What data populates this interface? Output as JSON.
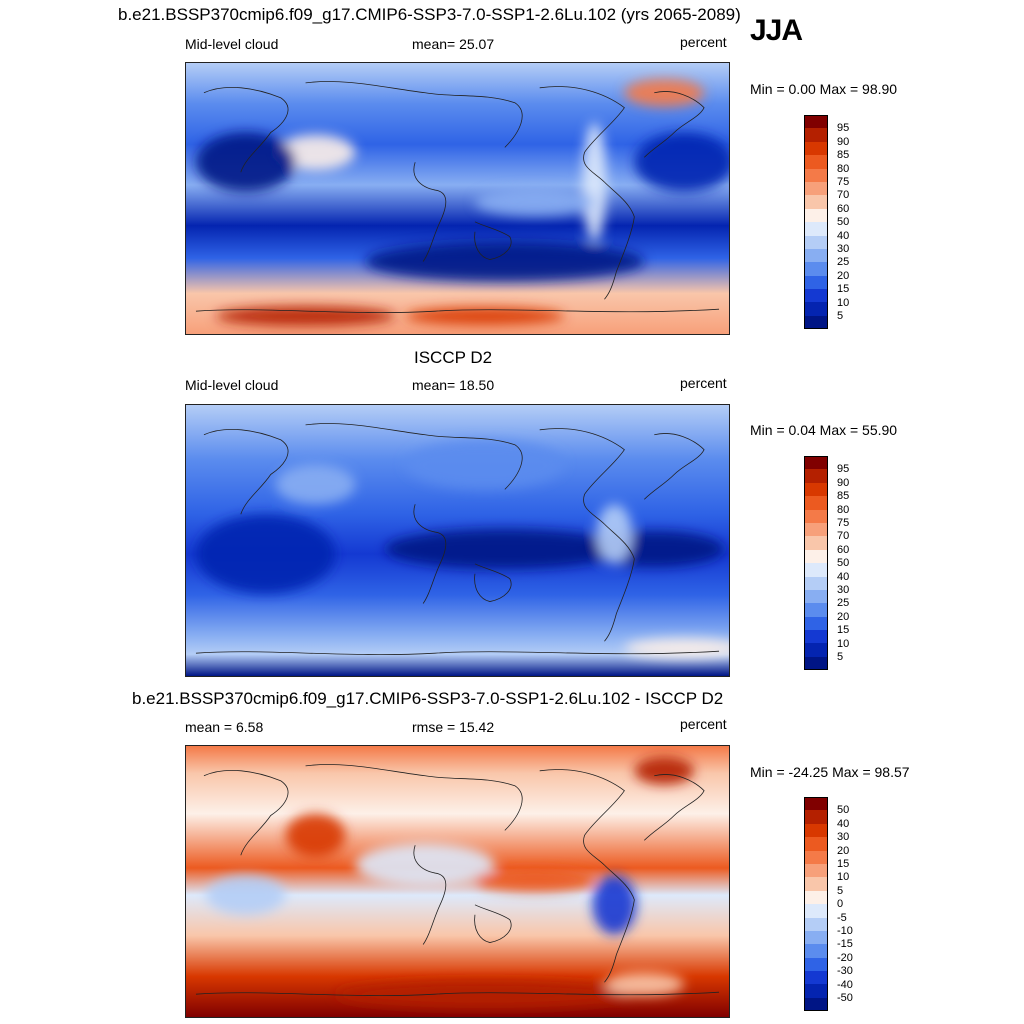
{
  "season": "JJA",
  "panels": [
    {
      "title": "b.e21.BSSP370cmip6.f09_g17.CMIP6-SSP3-7.0-SSP1-2.6Lu.102 (yrs 2065-2089)",
      "left_label": "Mid-level cloud",
      "center_label": "mean=  25.07",
      "right_label": "percent",
      "minmax": "Min =   0.00 Max =  98.90",
      "levels": [
        "95",
        "90",
        "85",
        "80",
        "75",
        "70",
        "60",
        "50",
        "40",
        "30",
        "25",
        "20",
        "15",
        "10",
        "5"
      ],
      "colors": [
        "#800000",
        "#b42000",
        "#d83800",
        "#ec5a20",
        "#f47a48",
        "#f7a07a",
        "#f9c6aa",
        "#fdf0e8",
        "#dde9fb",
        "#b4cdf6",
        "#88aef2",
        "#5b8cee",
        "#2f63e6",
        "#1439d2",
        "#0424b0",
        "#001585"
      ]
    },
    {
      "title": "ISCCP D2",
      "left_label": "Mid-level cloud",
      "center_label": "mean=  18.50",
      "right_label": "percent",
      "minmax": "Min =   0.04 Max =  55.90",
      "levels": [
        "95",
        "90",
        "85",
        "80",
        "75",
        "70",
        "60",
        "50",
        "40",
        "30",
        "25",
        "20",
        "15",
        "10",
        "5"
      ],
      "colors": [
        "#800000",
        "#b42000",
        "#d83800",
        "#ec5a20",
        "#f47a48",
        "#f7a07a",
        "#f9c6aa",
        "#fdf0e8",
        "#dde9fb",
        "#b4cdf6",
        "#88aef2",
        "#5b8cee",
        "#2f63e6",
        "#1439d2",
        "#0424b0",
        "#001585"
      ]
    },
    {
      "title": "b.e21.BSSP370cmip6.f09_g17.CMIP6-SSP3-7.0-SSP1-2.6Lu.102 - ISCCP D2",
      "left_label": "mean =   6.58",
      "center_label": "rmse =  15.42",
      "right_label": "percent",
      "minmax": "Min = -24.25 Max =  98.57",
      "levels": [
        "50",
        "40",
        "30",
        "20",
        "15",
        "10",
        "5",
        "0",
        "-5",
        "-10",
        "-15",
        "-20",
        "-30",
        "-40",
        "-50"
      ],
      "colors": [
        "#800000",
        "#b42000",
        "#d83800",
        "#ec5a20",
        "#f47a48",
        "#f7a07a",
        "#f9c6aa",
        "#fdf0e8",
        "#dde9fb",
        "#b4cdf6",
        "#88aef2",
        "#5b8cee",
        "#2f63e6",
        "#1439d2",
        "#0424b0",
        "#001585"
      ]
    }
  ]
}
